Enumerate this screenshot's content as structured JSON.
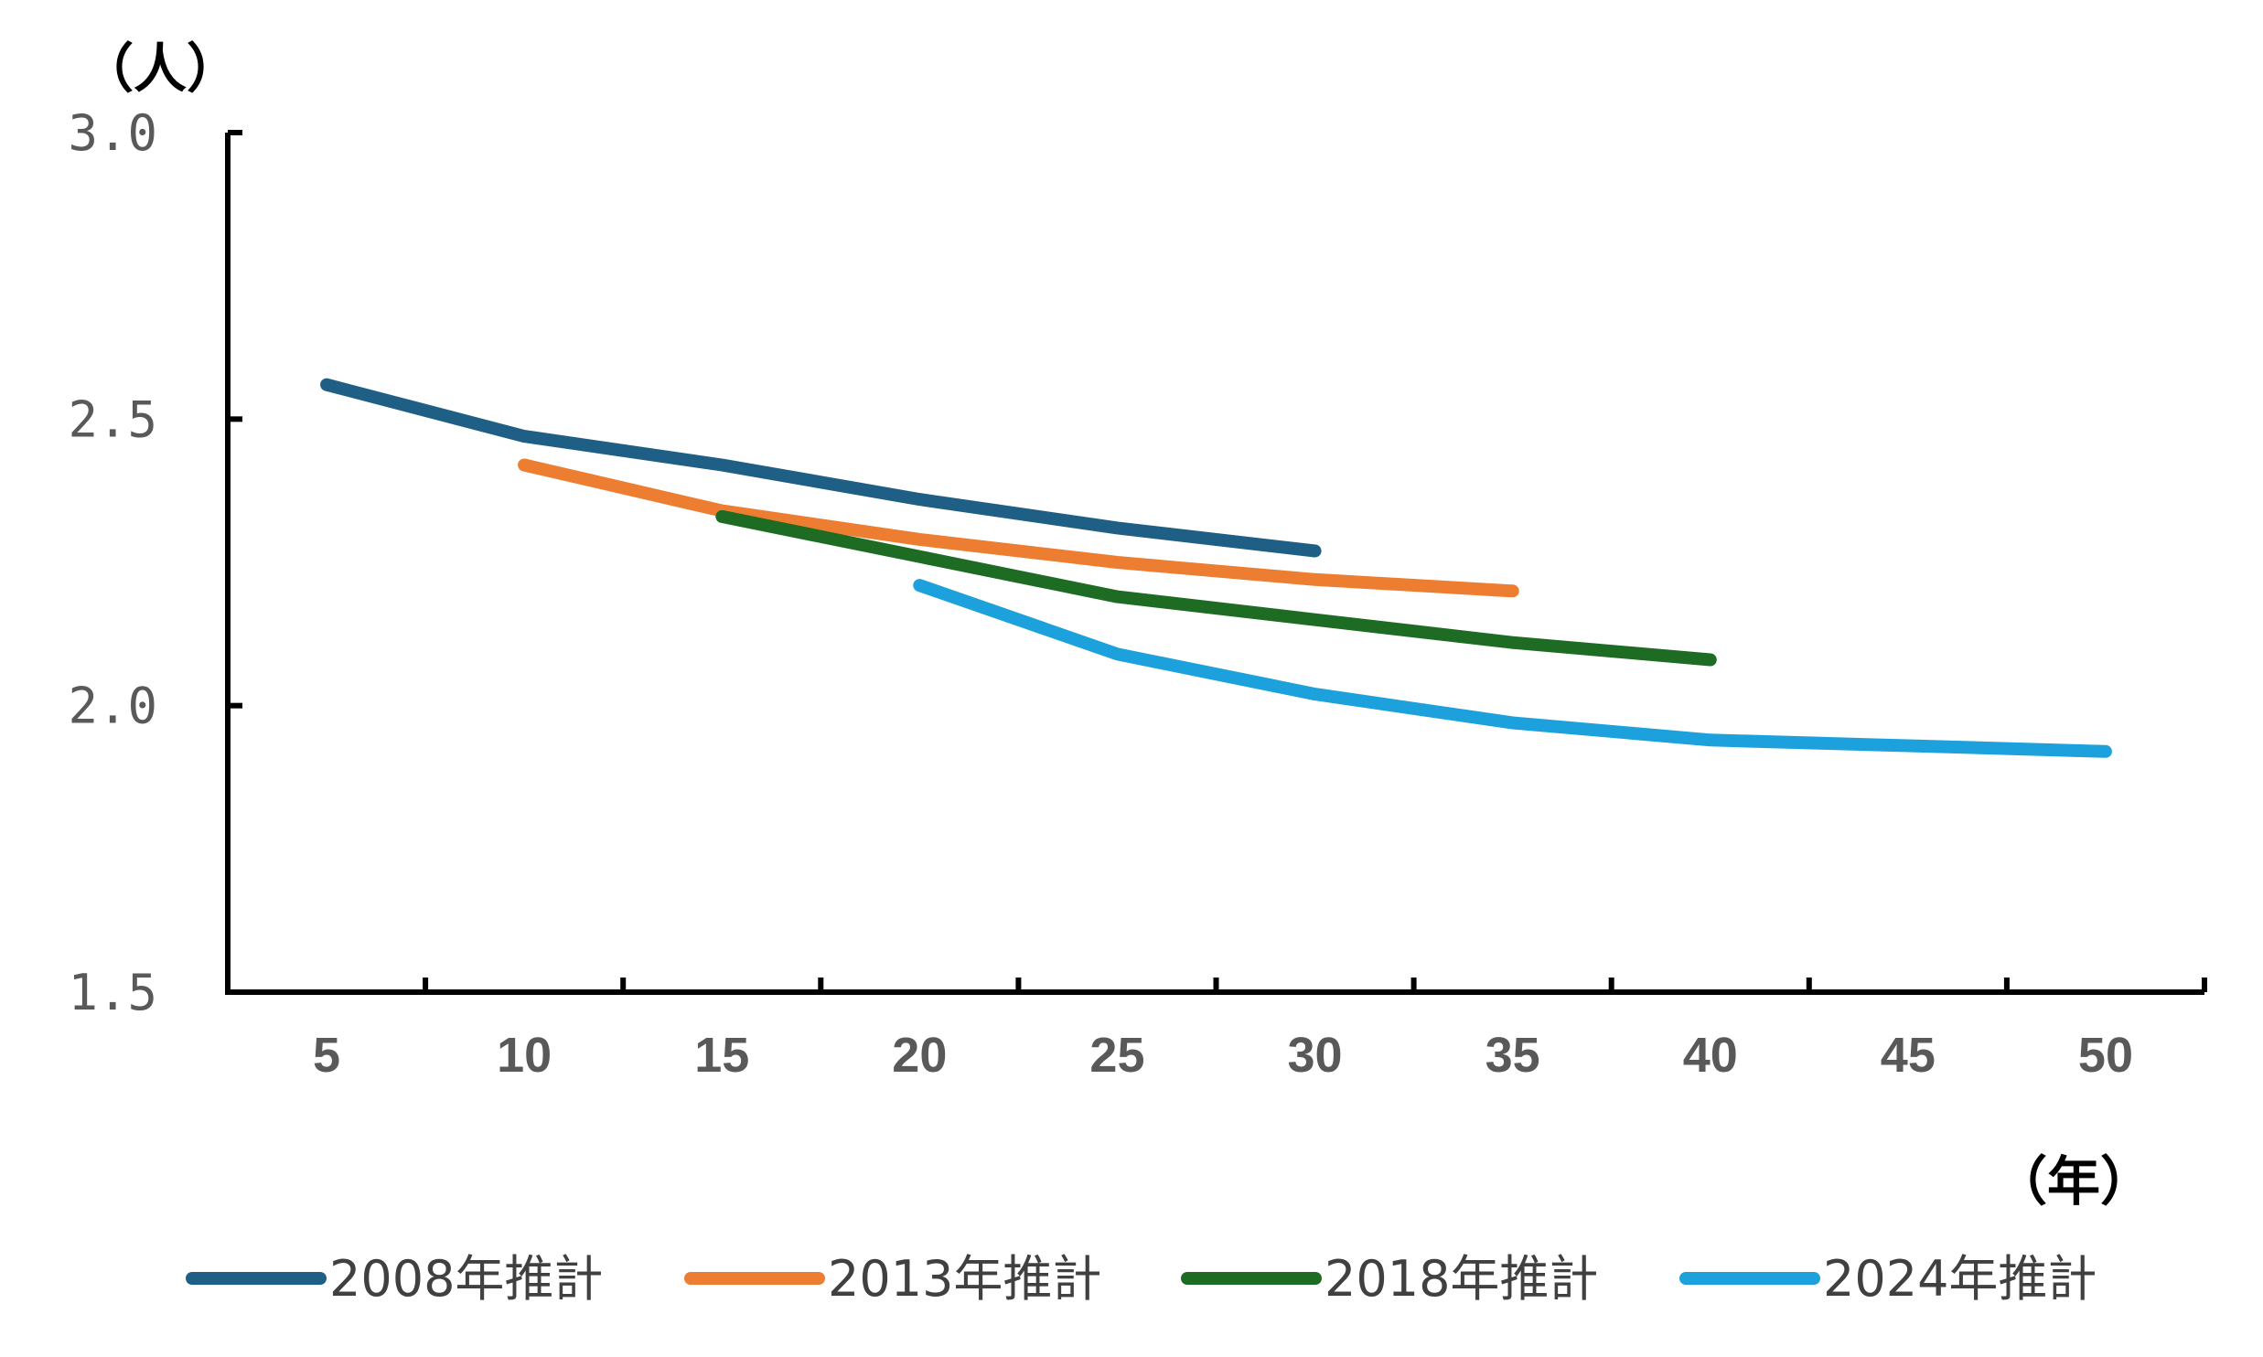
{
  "chart_data": {
    "type": "line",
    "y_unit_label": "（人）",
    "x_unit_label": "（年）",
    "x_ticks": [
      5,
      10,
      15,
      20,
      25,
      30,
      35,
      40,
      45,
      50
    ],
    "y_ticks": [
      "1.5",
      "2.0",
      "2.5",
      "3.0"
    ],
    "y_tick_values": [
      1.5,
      2.0,
      2.5,
      3.0
    ],
    "xlim": [
      2.5,
      52.5
    ],
    "ylim": [
      1.5,
      3.0
    ],
    "grid": false,
    "legend_position": "bottom",
    "series": [
      {
        "name": "2008年推計",
        "color": "#1F5F85",
        "x": [
          5,
          10,
          15,
          20,
          25,
          30
        ],
        "y": [
          2.56,
          2.47,
          2.42,
          2.36,
          2.31,
          2.27
        ]
      },
      {
        "name": "2013年推計",
        "color": "#ED7D31",
        "x": [
          10,
          15,
          20,
          25,
          30,
          35
        ],
        "y": [
          2.42,
          2.34,
          2.29,
          2.25,
          2.22,
          2.2
        ]
      },
      {
        "name": "2018年推計",
        "color": "#1E6B23",
        "x": [
          15,
          20,
          25,
          30,
          35,
          40
        ],
        "y": [
          2.33,
          2.26,
          2.19,
          2.15,
          2.11,
          2.08
        ]
      },
      {
        "name": "2024年推計",
        "color": "#1CA1DC",
        "x": [
          20,
          25,
          30,
          35,
          40,
          45,
          50
        ],
        "y": [
          2.21,
          2.09,
          2.02,
          1.97,
          1.94,
          1.93,
          1.92
        ]
      }
    ]
  }
}
